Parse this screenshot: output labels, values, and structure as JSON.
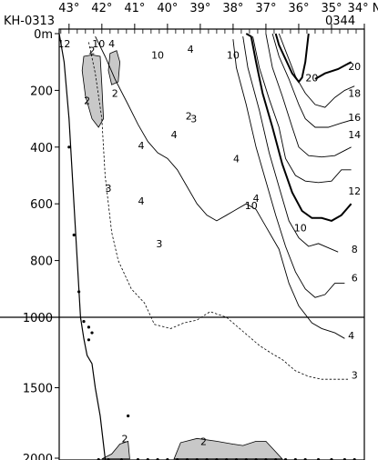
{
  "chart_data": {
    "type": "contour-section",
    "x_axis": {
      "latitudes": [
        43,
        42,
        41,
        40,
        39,
        38,
        37,
        36,
        35,
        34
      ],
      "tick_labels": [
        "43°",
        "42°",
        "41°",
        "40°",
        "39°",
        "38°",
        "37°",
        "36°",
        "35°",
        "34° N"
      ],
      "direction": "decreasing"
    },
    "y_axis": {
      "ticks": [
        0,
        200,
        400,
        600,
        800,
        1000,
        1500,
        2000
      ],
      "tick_labels": [
        "0m",
        "200",
        "400",
        "600",
        "800",
        "1000",
        "1500",
        "2000"
      ],
      "range": [
        0,
        2100
      ],
      "scale_break_at": 1000
    },
    "station_labels": {
      "start": "KH-0313",
      "end": "0344"
    },
    "shaded_interval": "< 2",
    "contour_labels": [
      {
        "text": "12"
      },
      {
        "text": "10"
      },
      {
        "text": "4"
      },
      {
        "text": "2"
      },
      {
        "text": "2"
      },
      {
        "text": "2"
      },
      {
        "text": "10"
      },
      {
        "text": "4"
      },
      {
        "text": "10"
      },
      {
        "text": "20"
      },
      {
        "text": "20"
      },
      {
        "text": "18"
      },
      {
        "text": "2"
      },
      {
        "text": "3"
      },
      {
        "text": "4"
      },
      {
        "text": "4"
      },
      {
        "text": "16"
      },
      {
        "text": "14"
      },
      {
        "text": "4"
      },
      {
        "text": "3"
      },
      {
        "text": "4"
      },
      {
        "text": "4"
      },
      {
        "text": "12"
      },
      {
        "text": "10"
      },
      {
        "text": "10"
      },
      {
        "text": "3"
      },
      {
        "text": "8"
      },
      {
        "text": "6"
      },
      {
        "text": "4"
      },
      {
        "text": "3"
      },
      {
        "text": "2"
      },
      {
        "text": "2"
      }
    ],
    "contours": [
      {
        "level": 20,
        "style": "bold",
        "points": [
          [
            36.7,
            0
          ],
          [
            36.6,
            40
          ],
          [
            36.4,
            90
          ],
          [
            36.2,
            140
          ],
          [
            36.0,
            170
          ],
          [
            35.9,
            155
          ],
          [
            35.8,
            100
          ],
          [
            35.7,
            0
          ]
        ]
      },
      {
        "level": 20,
        "style": "bold",
        "points": [
          [
            35.5,
            160
          ],
          [
            35.2,
            140
          ],
          [
            34.8,
            125
          ],
          [
            34.4,
            100
          ]
        ]
      },
      {
        "level": 18,
        "style": "thin",
        "points": [
          [
            36.6,
            0
          ],
          [
            36.4,
            60
          ],
          [
            36.1,
            150
          ],
          [
            35.8,
            210
          ],
          [
            35.5,
            250
          ],
          [
            35.2,
            260
          ],
          [
            34.9,
            225
          ],
          [
            34.6,
            200
          ],
          [
            34.3,
            185
          ]
        ]
      },
      {
        "level": 16,
        "style": "thin",
        "points": [
          [
            36.8,
            0
          ],
          [
            36.6,
            80
          ],
          [
            36.3,
            160
          ],
          [
            36.0,
            250
          ],
          [
            35.8,
            300
          ],
          [
            35.5,
            330
          ],
          [
            35.1,
            330
          ],
          [
            34.7,
            315
          ],
          [
            34.4,
            305
          ]
        ]
      },
      {
        "level": 14,
        "style": "thin",
        "points": [
          [
            37.0,
            0
          ],
          [
            36.8,
            120
          ],
          [
            36.5,
            220
          ],
          [
            36.2,
            330
          ],
          [
            36.0,
            400
          ],
          [
            35.7,
            430
          ],
          [
            35.3,
            435
          ],
          [
            34.9,
            430
          ],
          [
            34.4,
            400
          ]
        ]
      },
      {
        "level": 12,
        "style": "thin",
        "points": [
          [
            37.4,
            10
          ],
          [
            37.2,
            120
          ],
          [
            36.9,
            230
          ],
          [
            36.6,
            330
          ],
          [
            36.4,
            440
          ],
          [
            36.1,
            500
          ],
          [
            35.8,
            520
          ],
          [
            35.4,
            525
          ],
          [
            35.0,
            520
          ],
          [
            34.7,
            480
          ],
          [
            34.4,
            480
          ]
        ]
      },
      {
        "level": 10,
        "style": "bold",
        "points": [
          [
            37.6,
            0
          ],
          [
            37.45,
            10
          ],
          [
            37.3,
            100
          ],
          [
            37.1,
            210
          ],
          [
            36.8,
            330
          ],
          [
            36.5,
            460
          ],
          [
            36.2,
            560
          ],
          [
            35.9,
            625
          ],
          [
            35.6,
            650
          ],
          [
            35.3,
            650
          ],
          [
            35.0,
            660
          ],
          [
            34.7,
            640
          ],
          [
            34.4,
            600
          ]
        ]
      },
      {
        "level": 8,
        "style": "thin",
        "points": [
          [
            37.7,
            10
          ],
          [
            37.55,
            120
          ],
          [
            37.2,
            270
          ],
          [
            36.9,
            420
          ],
          [
            36.6,
            540
          ],
          [
            36.3,
            660
          ],
          [
            36.0,
            720
          ],
          [
            35.7,
            750
          ],
          [
            35.4,
            740
          ],
          [
            35.1,
            755
          ],
          [
            34.8,
            770
          ]
        ]
      },
      {
        "level": 6,
        "style": "thin",
        "points": [
          [
            38.0,
            20
          ],
          [
            37.9,
            120
          ],
          [
            37.6,
            250
          ],
          [
            37.3,
            400
          ],
          [
            37.0,
            520
          ],
          [
            36.7,
            640
          ],
          [
            36.4,
            750
          ],
          [
            36.1,
            840
          ],
          [
            35.8,
            900
          ],
          [
            35.5,
            930
          ],
          [
            35.2,
            920
          ],
          [
            34.9,
            880
          ],
          [
            34.6,
            880
          ]
        ]
      },
      {
        "level": 4,
        "style": "thin",
        "points": [
          [
            42.2,
            10
          ],
          [
            41.9,
            80
          ],
          [
            41.6,
            160
          ],
          [
            41.2,
            250
          ],
          [
            40.9,
            320
          ],
          [
            40.6,
            380
          ],
          [
            40.3,
            420
          ],
          [
            40.0,
            440
          ],
          [
            39.7,
            480
          ],
          [
            39.4,
            540
          ],
          [
            39.1,
            600
          ],
          [
            38.8,
            640
          ],
          [
            38.5,
            660
          ],
          [
            38.2,
            640
          ],
          [
            37.9,
            620
          ],
          [
            37.6,
            600
          ],
          [
            37.3,
            620
          ],
          [
            37.0,
            680
          ],
          [
            36.6,
            760
          ],
          [
            36.3,
            880
          ],
          [
            36.0,
            960
          ],
          [
            35.6,
            1040
          ],
          [
            35.3,
            1080
          ],
          [
            34.9,
            1110
          ],
          [
            34.6,
            1150
          ]
        ]
      },
      {
        "level": 3,
        "style": "dashed",
        "points": [
          [
            42.4,
            30
          ],
          [
            42.2,
            140
          ],
          [
            42.0,
            300
          ],
          [
            41.9,
            500
          ],
          [
            41.7,
            700
          ],
          [
            41.5,
            800
          ],
          [
            41.1,
            900
          ],
          [
            40.7,
            950
          ],
          [
            40.4,
            1050
          ],
          [
            39.9,
            1080
          ],
          [
            39.5,
            1040
          ],
          [
            39.1,
            1020
          ],
          [
            38.7,
            980
          ],
          [
            38.2,
            1000
          ],
          [
            37.7,
            1100
          ],
          [
            37.2,
            1200
          ],
          [
            36.8,
            1260
          ],
          [
            36.5,
            1300
          ],
          [
            36.1,
            1380
          ],
          [
            35.7,
            1420
          ],
          [
            35.3,
            1440
          ],
          [
            34.9,
            1440
          ],
          [
            34.5,
            1440
          ]
        ]
      },
      {
        "level": 2,
        "style": "shaded",
        "points": [
          [
            42.55,
            80
          ],
          [
            42.3,
            75
          ],
          [
            42.05,
            80
          ],
          [
            42.0,
            180
          ],
          [
            41.95,
            300
          ],
          [
            42.1,
            330
          ],
          [
            42.3,
            300
          ],
          [
            42.5,
            220
          ],
          [
            42.6,
            130
          ],
          [
            42.55,
            80
          ]
        ]
      },
      {
        "level": 2,
        "style": "shaded",
        "points": [
          [
            41.75,
            70
          ],
          [
            41.55,
            60
          ],
          [
            41.45,
            100
          ],
          [
            41.5,
            170
          ],
          [
            41.7,
            180
          ],
          [
            41.8,
            130
          ],
          [
            41.75,
            70
          ]
        ]
      },
      {
        "level": 2,
        "style": "shaded",
        "points": [
          [
            42.0,
            2005
          ],
          [
            41.7,
            1970
          ],
          [
            41.45,
            1900
          ],
          [
            41.2,
            1880
          ],
          [
            41.15,
            2005
          ]
        ]
      },
      {
        "level": 2,
        "style": "shaded",
        "points": [
          [
            39.8,
            2005
          ],
          [
            39.6,
            1890
          ],
          [
            39.1,
            1860
          ],
          [
            38.5,
            1880
          ],
          [
            38.0,
            1900
          ],
          [
            37.7,
            1910
          ],
          [
            37.3,
            1880
          ],
          [
            37.0,
            1880
          ],
          [
            36.8,
            1930
          ],
          [
            36.5,
            2005
          ]
        ]
      }
    ],
    "bottom_profile": [
      [
        43.3,
        0
      ],
      [
        43.15,
        100
      ],
      [
        43.0,
        300
      ],
      [
        42.85,
        600
      ],
      [
        42.75,
        800
      ],
      [
        42.65,
        1000
      ],
      [
        42.55,
        1150
      ],
      [
        42.45,
        1270
      ],
      [
        42.3,
        1330
      ],
      [
        42.2,
        1500
      ],
      [
        42.05,
        1700
      ],
      [
        41.95,
        1900
      ],
      [
        41.85,
        2100
      ]
    ],
    "sample_points": [
      [
        43.0,
        400
      ],
      [
        42.85,
        710
      ],
      [
        42.7,
        910
      ],
      [
        42.55,
        1030
      ],
      [
        42.4,
        1070
      ],
      [
        42.3,
        1110
      ],
      [
        42.4,
        1160
      ],
      [
        41.2,
        1700
      ],
      [
        42.1,
        2010
      ],
      [
        41.8,
        2010
      ],
      [
        41.4,
        2010
      ],
      [
        40.9,
        2010
      ],
      [
        40.6,
        2010
      ],
      [
        40.3,
        2010
      ],
      [
        40.0,
        2010
      ],
      [
        39.7,
        2010
      ],
      [
        39.4,
        2010
      ],
      [
        39.1,
        2010
      ],
      [
        38.8,
        2010
      ],
      [
        38.5,
        2010
      ],
      [
        38.2,
        2010
      ],
      [
        37.9,
        2010
      ],
      [
        37.6,
        2010
      ],
      [
        37.3,
        2010
      ],
      [
        37.0,
        2010
      ],
      [
        36.7,
        2010
      ],
      [
        36.4,
        2010
      ],
      [
        36.1,
        2010
      ],
      [
        35.8,
        2010
      ],
      [
        35.4,
        2010
      ],
      [
        35.0,
        2010
      ],
      [
        34.6,
        2010
      ],
      [
        34.3,
        2010
      ]
    ]
  }
}
